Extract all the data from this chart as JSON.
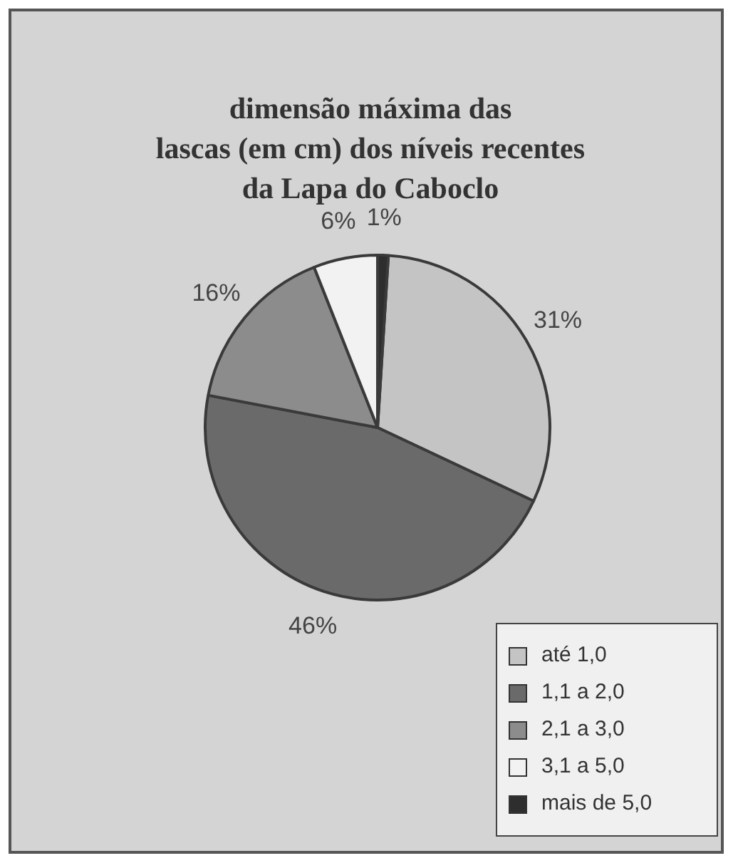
{
  "chart_data": {
    "type": "pie",
    "title": "dimensão máxima das\nlascas (em cm) dos níveis recentes\nda Lapa do Caboclo",
    "categories": [
      "até 1,0",
      "1,1 a 2,0",
      "2,1 a 3,0",
      "3,1 a 5,0",
      "mais de 5,0"
    ],
    "values": [
      31,
      46,
      16,
      6,
      1
    ],
    "value_labels": [
      "31%",
      "46%",
      "16%",
      "6%",
      "1%"
    ],
    "colors": [
      "#c4c4c4",
      "#6a6a6a",
      "#8c8c8c",
      "#f2f2f2",
      "#2e2e2e"
    ],
    "legend": "bottom right"
  }
}
